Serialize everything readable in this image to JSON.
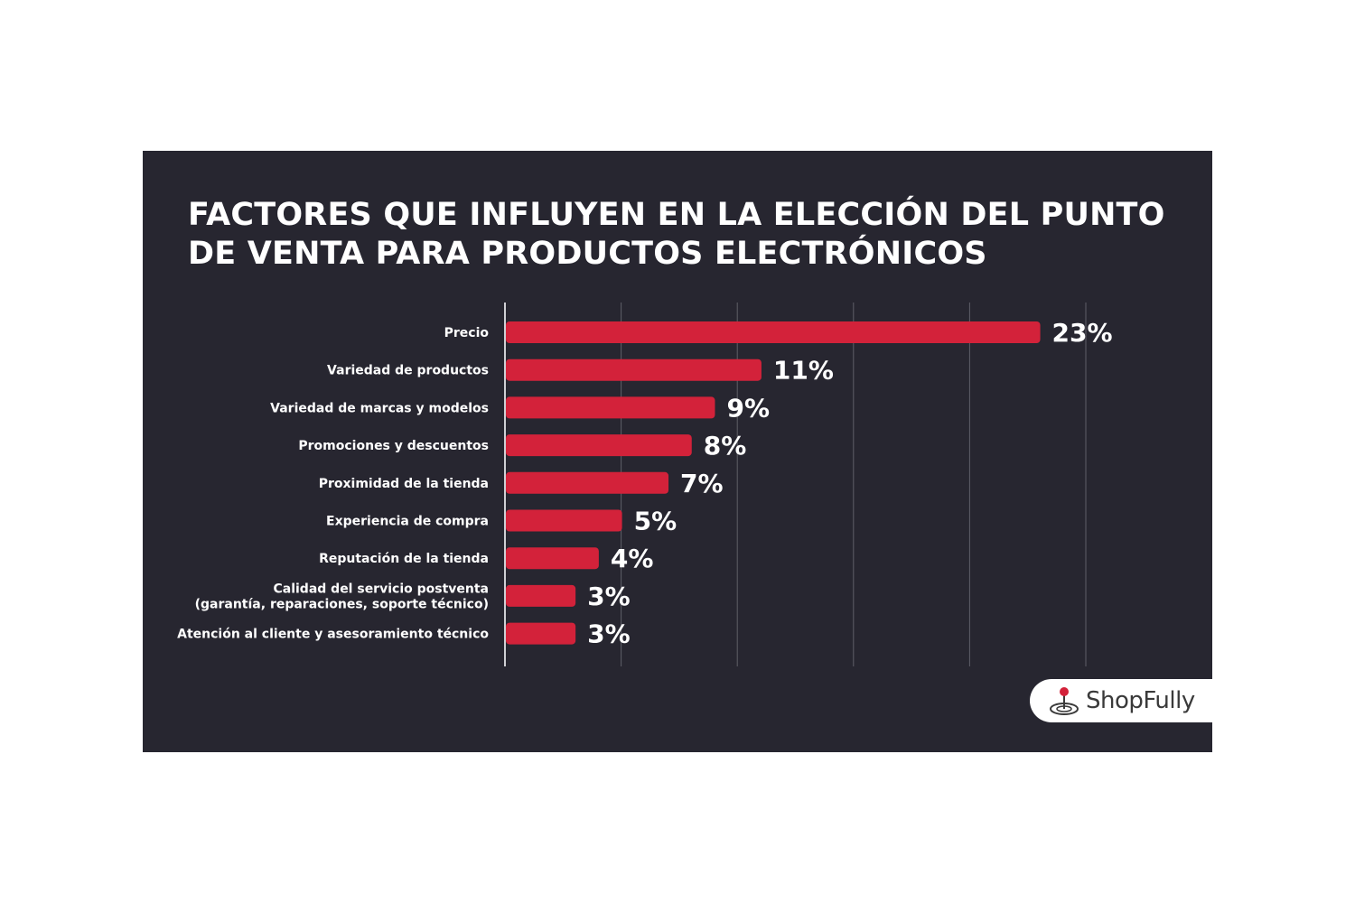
{
  "title": "FACTORES QUE INFLUYEN EN LA ELECCIÓN DEL PUNTO DE VENTA PARA PRODUCTOS ELECTRÓNICOS",
  "brand": {
    "name": "ShopFully",
    "icon": "shopfully-logo-icon"
  },
  "colors": {
    "background": "#272630",
    "bar": "#d3223a",
    "text": "#ffffff",
    "grid": "#5f5f68"
  },
  "chart_data": {
    "type": "bar",
    "orientation": "horizontal",
    "title": "FACTORES QUE INFLUYEN EN LA ELECCIÓN DEL PUNTO DE VENTA PARA PRODUCTOS ELECTRÓNICOS",
    "categories": [
      [
        "Precio"
      ],
      [
        "Variedad de productos"
      ],
      [
        "Variedad de marcas y modelos"
      ],
      [
        "Promociones y descuentos"
      ],
      [
        "Proximidad de la tienda"
      ],
      [
        "Experiencia de compra"
      ],
      [
        "Reputación de la tienda"
      ],
      [
        "Calidad del servicio postventa",
        "(garantía, reparaciones, soporte técnico)"
      ],
      [
        "Atención al cliente y asesoramiento técnico"
      ]
    ],
    "values": [
      23,
      11,
      9,
      8,
      7,
      5,
      4,
      3,
      3
    ],
    "value_labels": [
      "23%",
      "11%",
      "9%",
      "8%",
      "7%",
      "5%",
      "4%",
      "3%",
      "3%"
    ],
    "unit": "%",
    "xlim": [
      0,
      25
    ],
    "grid_ticks": [
      0,
      5,
      10,
      15,
      20,
      25
    ],
    "grid": true,
    "xlabel": "",
    "ylabel": ""
  }
}
